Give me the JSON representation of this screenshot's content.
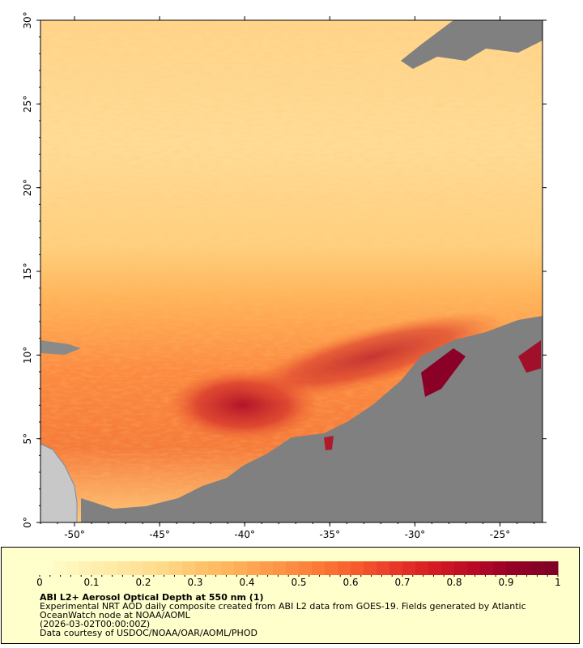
{
  "map": {
    "title": "ABI L2+ Aerosol Optical Depth at 550 nm (1)",
    "lon_range": [
      -52,
      -22.5
    ],
    "lat_range": [
      0,
      30
    ],
    "lon_ticks": [
      "-50°",
      "-45°",
      "-40°",
      "-35°",
      "-30°",
      "-25°"
    ],
    "lat_ticks": [
      "0°",
      "5°",
      "10°",
      "15°",
      "20°",
      "25°",
      "30°"
    ],
    "colors": {
      "no_data": "#808080",
      "land": "#c8c8c8",
      "low": "#ffe6a6",
      "mid": "#ff8c3a",
      "high": "#8b0026"
    }
  },
  "colorbar": {
    "ticks": [
      "0",
      "0.1",
      "0.2",
      "0.3",
      "0.4",
      "0.5",
      "0.6",
      "0.7",
      "0.8",
      "0.9",
      "1"
    ],
    "range": [
      0,
      1
    ],
    "colors": [
      "#ffffcc",
      "#fff1b3",
      "#ffe6a0",
      "#ffd98a",
      "#fec36a",
      "#feae58",
      "#fd9446",
      "#fc7a38",
      "#f65a2d",
      "#e8362a",
      "#d41a24",
      "#b80a26",
      "#950026",
      "#800026"
    ]
  },
  "legend": {
    "title": "ABI L2+ Aerosol Optical Depth at 550 nm (1)",
    "line1": "Experimental NRT AOD daily composite created from ABI L2 data from GOES-19. Fields generated by Atlantic",
    "line2": "OceanWatch node at NOAA/AOML",
    "line3": "(2026-03-02T00:00:00Z)",
    "line4": "Data courtesy of USDOC/NOAA/OAR/AOML/PHOD"
  }
}
